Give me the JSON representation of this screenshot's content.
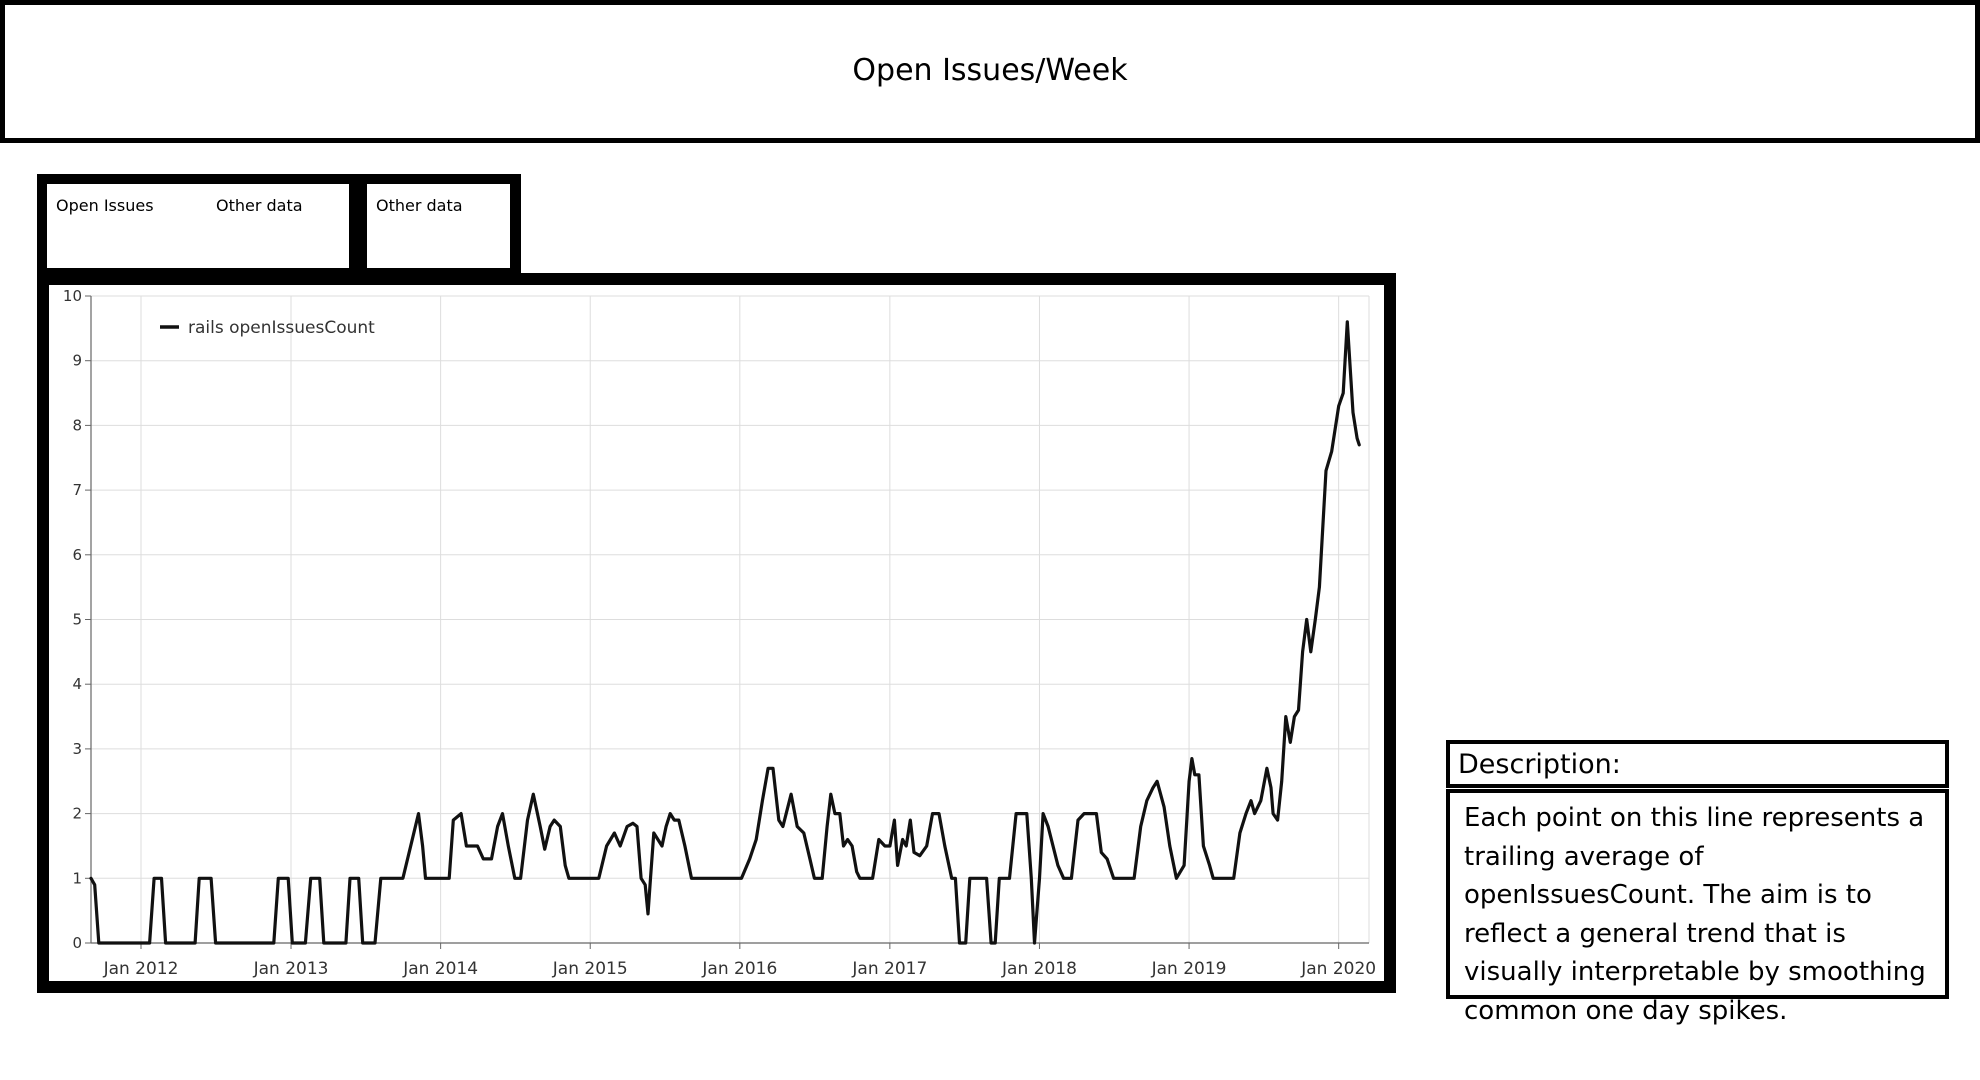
{
  "page": {
    "title": "Open Issues/Week"
  },
  "tabs": [
    {
      "label": "Open Issues"
    },
    {
      "label": "Other data"
    },
    {
      "label": "Other data"
    }
  ],
  "description": {
    "title": "Description:",
    "body": "Each point on this line represents a trailing average of openIssuesCount. The aim is to reflect a general trend that is visually interpretable by smoothing common one day spikes."
  },
  "chart_data": {
    "type": "line",
    "title": "",
    "xlabel": "",
    "ylabel": "",
    "xlim": [
      "2011-09-01",
      "2020-03-15"
    ],
    "ylim": [
      0,
      10
    ],
    "yticks": [
      0,
      1,
      2,
      3,
      4,
      5,
      6,
      7,
      8,
      9,
      10
    ],
    "xticks": [
      {
        "date": "2012-01-01",
        "label": "Jan 2012"
      },
      {
        "date": "2013-01-01",
        "label": "Jan 2013"
      },
      {
        "date": "2014-01-01",
        "label": "Jan 2014"
      },
      {
        "date": "2015-01-01",
        "label": "Jan 2015"
      },
      {
        "date": "2016-01-01",
        "label": "Jan 2016"
      },
      {
        "date": "2017-01-01",
        "label": "Jan 2017"
      },
      {
        "date": "2018-01-01",
        "label": "Jan 2018"
      },
      {
        "date": "2019-01-01",
        "label": "Jan 2019"
      },
      {
        "date": "2020-01-01",
        "label": "Jan 2020"
      }
    ],
    "grid": true,
    "legend": {
      "position": "top-left"
    },
    "colors": {
      "line": "#111111",
      "grid": "#dddddd",
      "axis": "#666666"
    },
    "series": [
      {
        "name": "rails openIssuesCount",
        "points": [
          [
            "2011-09-01",
            1.0
          ],
          [
            "2011-09-10",
            0.9
          ],
          [
            "2011-09-20",
            0.0
          ],
          [
            "2011-10-15",
            0.0
          ],
          [
            "2011-11-15",
            0.0
          ],
          [
            "2011-12-15",
            0.0
          ],
          [
            "2012-01-10",
            0.0
          ],
          [
            "2012-01-22",
            0.0
          ],
          [
            "2012-02-02",
            1.0
          ],
          [
            "2012-02-20",
            1.0
          ],
          [
            "2012-03-01",
            0.0
          ],
          [
            "2012-04-15",
            0.0
          ],
          [
            "2012-05-12",
            0.0
          ],
          [
            "2012-05-22",
            1.0
          ],
          [
            "2012-06-20",
            1.0
          ],
          [
            "2012-07-01",
            0.0
          ],
          [
            "2012-08-15",
            0.0
          ],
          [
            "2012-10-01",
            0.0
          ],
          [
            "2012-11-20",
            0.0
          ],
          [
            "2012-12-01",
            1.0
          ],
          [
            "2012-12-25",
            1.0
          ],
          [
            "2013-01-04",
            0.0
          ],
          [
            "2013-02-05",
            0.0
          ],
          [
            "2013-02-18",
            1.0
          ],
          [
            "2013-03-12",
            1.0
          ],
          [
            "2013-03-22",
            0.0
          ],
          [
            "2013-05-15",
            0.0
          ],
          [
            "2013-05-25",
            1.0
          ],
          [
            "2013-06-15",
            1.0
          ],
          [
            "2013-06-25",
            0.0
          ],
          [
            "2013-07-25",
            0.0
          ],
          [
            "2013-08-08",
            1.0
          ],
          [
            "2013-09-10",
            1.0
          ],
          [
            "2013-10-01",
            1.0
          ],
          [
            "2013-10-20",
            1.5
          ],
          [
            "2013-11-08",
            2.0
          ],
          [
            "2013-11-18",
            1.5
          ],
          [
            "2013-11-25",
            1.0
          ],
          [
            "2014-01-01",
            1.0
          ],
          [
            "2014-01-22",
            1.0
          ],
          [
            "2014-02-01",
            1.9
          ],
          [
            "2014-02-20",
            2.0
          ],
          [
            "2014-03-05",
            1.5
          ],
          [
            "2014-04-01",
            1.5
          ],
          [
            "2014-04-15",
            1.3
          ],
          [
            "2014-05-05",
            1.3
          ],
          [
            "2014-05-20",
            1.8
          ],
          [
            "2014-06-01",
            2.0
          ],
          [
            "2014-06-15",
            1.5
          ],
          [
            "2014-07-01",
            1.0
          ],
          [
            "2014-07-15",
            1.0
          ],
          [
            "2014-08-01",
            1.9
          ],
          [
            "2014-08-15",
            2.3
          ],
          [
            "2014-09-01",
            1.8
          ],
          [
            "2014-09-12",
            1.45
          ],
          [
            "2014-09-25",
            1.8
          ],
          [
            "2014-10-05",
            1.9
          ],
          [
            "2014-10-20",
            1.8
          ],
          [
            "2014-11-01",
            1.2
          ],
          [
            "2014-11-10",
            1.0
          ],
          [
            "2015-01-01",
            1.0
          ],
          [
            "2015-01-22",
            1.0
          ],
          [
            "2015-02-10",
            1.5
          ],
          [
            "2015-03-01",
            1.7
          ],
          [
            "2015-03-15",
            1.5
          ],
          [
            "2015-04-01",
            1.8
          ],
          [
            "2015-04-15",
            1.85
          ],
          [
            "2015-04-25",
            1.8
          ],
          [
            "2015-05-05",
            1.0
          ],
          [
            "2015-05-15",
            0.9
          ],
          [
            "2015-05-22",
            0.45
          ],
          [
            "2015-05-28",
            1.0
          ],
          [
            "2015-06-05",
            1.7
          ],
          [
            "2015-06-15",
            1.6
          ],
          [
            "2015-06-25",
            1.5
          ],
          [
            "2015-07-05",
            1.8
          ],
          [
            "2015-07-15",
            2.0
          ],
          [
            "2015-07-25",
            1.9
          ],
          [
            "2015-08-05",
            1.9
          ],
          [
            "2015-08-20",
            1.5
          ],
          [
            "2015-09-05",
            1.0
          ],
          [
            "2015-10-01",
            1.0
          ],
          [
            "2015-11-01",
            1.0
          ],
          [
            "2015-12-01",
            1.0
          ],
          [
            "2016-01-05",
            1.0
          ],
          [
            "2016-01-25",
            1.3
          ],
          [
            "2016-02-10",
            1.6
          ],
          [
            "2016-02-25",
            2.2
          ],
          [
            "2016-03-10",
            2.7
          ],
          [
            "2016-03-22",
            2.7
          ],
          [
            "2016-04-05",
            1.9
          ],
          [
            "2016-04-15",
            1.8
          ],
          [
            "2016-05-05",
            2.3
          ],
          [
            "2016-05-20",
            1.8
          ],
          [
            "2016-06-05",
            1.7
          ],
          [
            "2016-06-20",
            1.3
          ],
          [
            "2016-07-01",
            1.0
          ],
          [
            "2016-07-20",
            1.0
          ],
          [
            "2016-08-01",
            1.8
          ],
          [
            "2016-08-10",
            2.3
          ],
          [
            "2016-08-20",
            2.0
          ],
          [
            "2016-09-01",
            2.0
          ],
          [
            "2016-09-10",
            1.5
          ],
          [
            "2016-09-20",
            1.6
          ],
          [
            "2016-10-01",
            1.5
          ],
          [
            "2016-10-12",
            1.1
          ],
          [
            "2016-10-20",
            1.0
          ],
          [
            "2016-11-20",
            1.0
          ],
          [
            "2016-12-05",
            1.6
          ],
          [
            "2016-12-20",
            1.5
          ],
          [
            "2017-01-01",
            1.5
          ],
          [
            "2017-01-12",
            1.9
          ],
          [
            "2017-01-20",
            1.2
          ],
          [
            "2017-02-01",
            1.6
          ],
          [
            "2017-02-10",
            1.5
          ],
          [
            "2017-02-20",
            1.9
          ],
          [
            "2017-03-01",
            1.4
          ],
          [
            "2017-03-15",
            1.35
          ],
          [
            "2017-04-01",
            1.5
          ],
          [
            "2017-04-15",
            2.0
          ],
          [
            "2017-05-01",
            2.0
          ],
          [
            "2017-05-15",
            1.5
          ],
          [
            "2017-06-01",
            1.0
          ],
          [
            "2017-06-10",
            1.0
          ],
          [
            "2017-06-20",
            0.0
          ],
          [
            "2017-07-05",
            0.0
          ],
          [
            "2017-07-15",
            1.0
          ],
          [
            "2017-08-10",
            1.0
          ],
          [
            "2017-08-25",
            1.0
          ],
          [
            "2017-09-05",
            0.0
          ],
          [
            "2017-09-15",
            0.0
          ],
          [
            "2017-09-25",
            1.0
          ],
          [
            "2017-10-20",
            1.0
          ],
          [
            "2017-11-05",
            2.0
          ],
          [
            "2017-12-01",
            2.0
          ],
          [
            "2017-12-12",
            1.0
          ],
          [
            "2017-12-20",
            0.0
          ],
          [
            "2018-01-01",
            1.0
          ],
          [
            "2018-01-10",
            2.0
          ],
          [
            "2018-01-22",
            1.8
          ],
          [
            "2018-02-15",
            1.2
          ],
          [
            "2018-03-01",
            1.0
          ],
          [
            "2018-03-20",
            1.0
          ],
          [
            "2018-04-05",
            1.9
          ],
          [
            "2018-04-20",
            2.0
          ],
          [
            "2018-05-20",
            2.0
          ],
          [
            "2018-06-01",
            1.4
          ],
          [
            "2018-06-15",
            1.3
          ],
          [
            "2018-07-01",
            1.0
          ],
          [
            "2018-08-01",
            1.0
          ],
          [
            "2018-08-20",
            1.0
          ],
          [
            "2018-09-05",
            1.8
          ],
          [
            "2018-09-20",
            2.2
          ],
          [
            "2018-10-05",
            2.4
          ],
          [
            "2018-10-15",
            2.5
          ],
          [
            "2018-11-01",
            2.1
          ],
          [
            "2018-11-15",
            1.5
          ],
          [
            "2018-12-01",
            1.0
          ],
          [
            "2018-12-20",
            1.2
          ],
          [
            "2019-01-01",
            2.5
          ],
          [
            "2019-01-08",
            2.85
          ],
          [
            "2019-01-15",
            2.6
          ],
          [
            "2019-01-25",
            2.6
          ],
          [
            "2019-02-05",
            1.5
          ],
          [
            "2019-02-20",
            1.2
          ],
          [
            "2019-03-01",
            1.0
          ],
          [
            "2019-04-01",
            1.0
          ],
          [
            "2019-04-20",
            1.0
          ],
          [
            "2019-05-05",
            1.7
          ],
          [
            "2019-05-20",
            2.0
          ],
          [
            "2019-06-01",
            2.2
          ],
          [
            "2019-06-10",
            2.0
          ],
          [
            "2019-06-25",
            2.2
          ],
          [
            "2019-07-10",
            2.7
          ],
          [
            "2019-07-20",
            2.4
          ],
          [
            "2019-07-25",
            2.0
          ],
          [
            "2019-08-05",
            1.9
          ],
          [
            "2019-08-15",
            2.5
          ],
          [
            "2019-08-25",
            3.5
          ],
          [
            "2019-09-05",
            3.1
          ],
          [
            "2019-09-15",
            3.5
          ],
          [
            "2019-09-25",
            3.6
          ],
          [
            "2019-10-05",
            4.5
          ],
          [
            "2019-10-15",
            5.0
          ],
          [
            "2019-10-25",
            4.5
          ],
          [
            "2019-11-05",
            5.0
          ],
          [
            "2019-11-15",
            5.5
          ],
          [
            "2019-12-01",
            7.3
          ],
          [
            "2019-12-15",
            7.6
          ],
          [
            "2020-01-01",
            8.3
          ],
          [
            "2020-01-12",
            8.5
          ],
          [
            "2020-01-22",
            9.6
          ],
          [
            "2020-02-05",
            8.2
          ],
          [
            "2020-02-15",
            7.8
          ],
          [
            "2020-02-20",
            7.7
          ]
        ]
      }
    ]
  }
}
